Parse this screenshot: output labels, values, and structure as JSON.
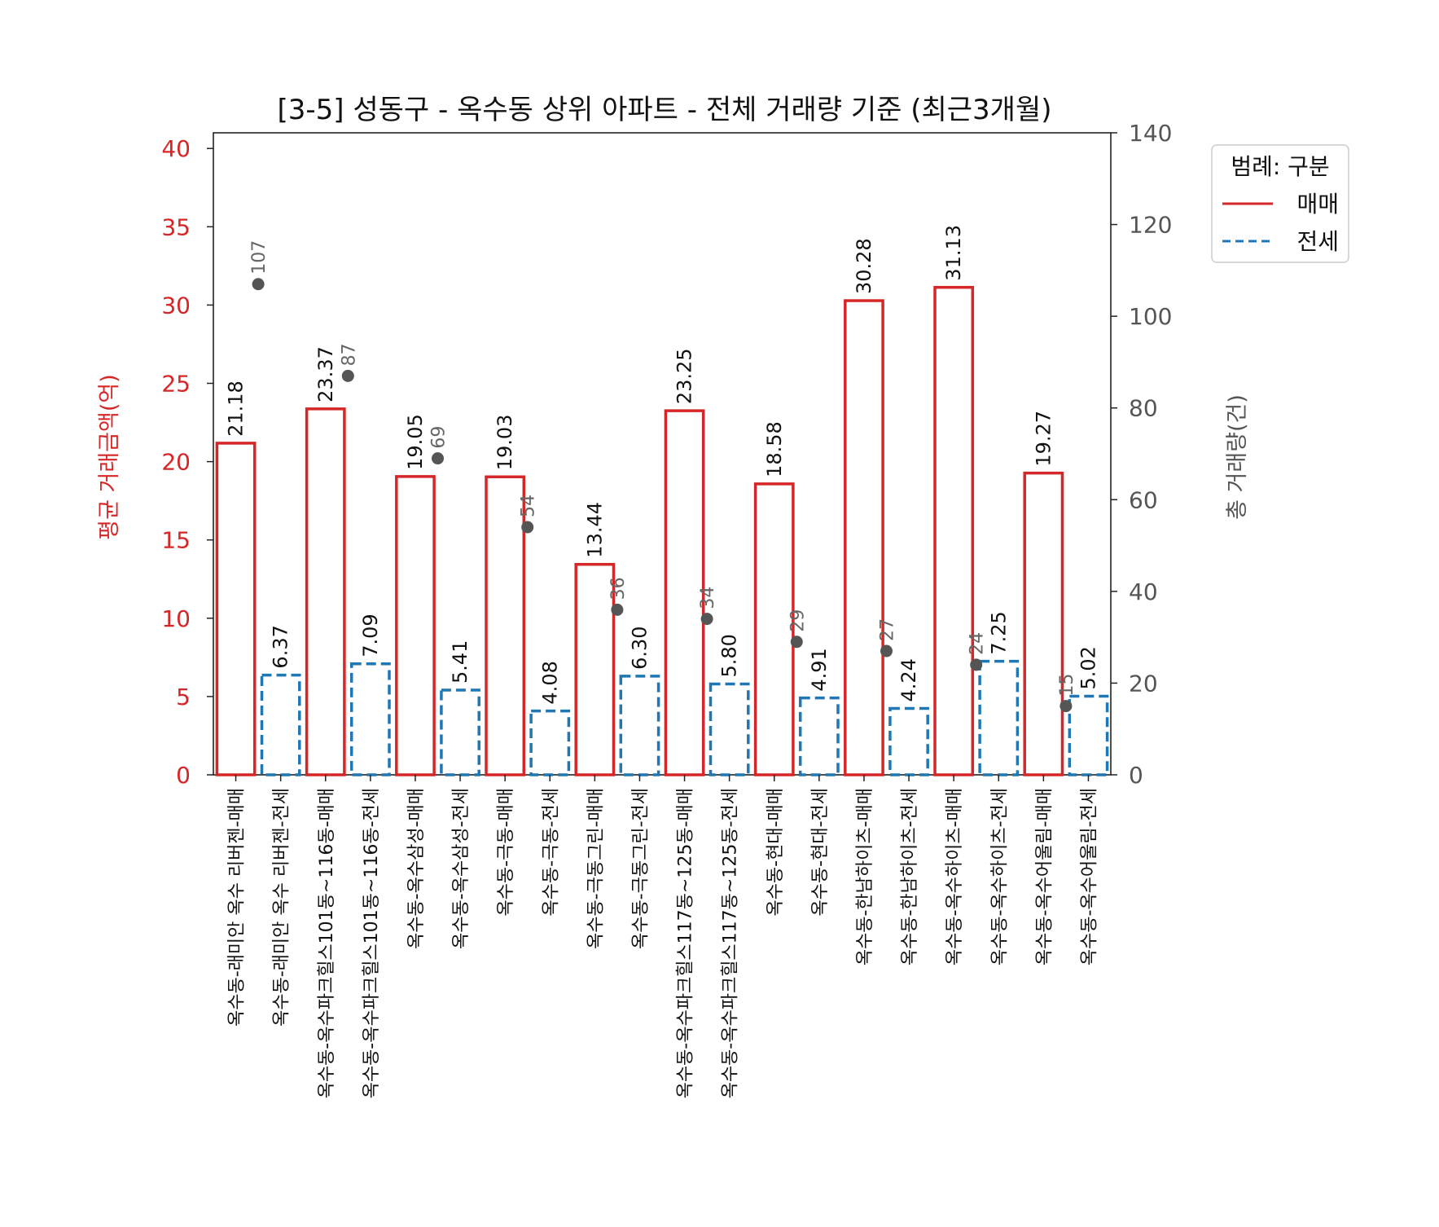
{
  "chart_data": {
    "type": "bar",
    "title": "[3-5] 성동구 - 옥수동 상위 아파트 - 전체 거래량 기준 (최근3개월)",
    "ylabel": "평균 거래금액(억)",
    "y2label": "총 거래량(건)",
    "ylim": [
      0,
      41
    ],
    "y2lim": [
      0,
      140
    ],
    "yticks": [
      "0",
      "5",
      "10",
      "15",
      "20",
      "25",
      "30",
      "35",
      "40"
    ],
    "y2ticks": [
      "0",
      "20",
      "40",
      "60",
      "80",
      "100",
      "120",
      "140"
    ],
    "categories": [
      "옥수동-래미안 옥수 리버젠-매매",
      "옥수동-래미안 옥수 리버젠-전세",
      "옥수동-옥수파크힐스101동~116동-매매",
      "옥수동-옥수파크힐스101동~116동-전세",
      "옥수동-옥수삼성-매매",
      "옥수동-옥수삼성-전세",
      "옥수동-극동-매매",
      "옥수동-극동-전세",
      "옥수동-극동그린-매매",
      "옥수동-극동그린-전세",
      "옥수동-옥수파크힐스117동~125동-매매",
      "옥수동-옥수파크힐스117동~125동-전세",
      "옥수동-현대-매매",
      "옥수동-현대-전세",
      "옥수동-한남하이츠-매매",
      "옥수동-한남하이츠-전세",
      "옥수동-옥수하이츠-매매",
      "옥수동-옥수하이츠-전세",
      "옥수동-옥수어울림-매매",
      "옥수동-옥수어울림-전세"
    ],
    "bar_types": [
      "매매",
      "전세",
      "매매",
      "전세",
      "매매",
      "전세",
      "매매",
      "전세",
      "매매",
      "전세",
      "매매",
      "전세",
      "매매",
      "전세",
      "매매",
      "전세",
      "매매",
      "전세",
      "매매",
      "전세"
    ],
    "values": [
      21.18,
      6.37,
      23.37,
      7.09,
      19.05,
      5.41,
      19.03,
      4.08,
      13.44,
      6.3,
      23.25,
      5.8,
      18.58,
      4.91,
      30.28,
      4.24,
      31.13,
      7.25,
      19.27,
      5.02
    ],
    "value_labels": [
      "21.18",
      "6.37",
      "23.37",
      "7.09",
      "19.05",
      "5.41",
      "19.03",
      "4.08",
      "13.44",
      "6.30",
      "23.25",
      "5.80",
      "18.58",
      "4.91",
      "30.28",
      "4.24",
      "31.13",
      "7.25",
      "19.27",
      "5.02"
    ],
    "volume": [
      {
        "value": 107,
        "label": "107"
      },
      {
        "value": 87,
        "label": "87"
      },
      {
        "value": 69,
        "label": "69"
      },
      {
        "value": 54,
        "label": "54"
      },
      {
        "value": 36,
        "label": "36"
      },
      {
        "value": 34,
        "label": "34"
      },
      {
        "value": 29,
        "label": "29"
      },
      {
        "value": 27,
        "label": "27"
      },
      {
        "value": 24,
        "label": "24"
      },
      {
        "value": 15,
        "label": "15"
      }
    ],
    "legend": {
      "title": "범례: 구분",
      "position": "outside-top-right",
      "items": [
        {
          "label": "매매",
          "style": "solid",
          "color": "#d62728"
        },
        {
          "label": "전세",
          "style": "dashed",
          "color": "#1f77b4"
        }
      ]
    },
    "colors": {
      "sale": "#d62728",
      "jeonse": "#1f77b4",
      "volume_dot": "#555555",
      "left_axis": "#d62728",
      "right_axis": "#555555"
    }
  }
}
